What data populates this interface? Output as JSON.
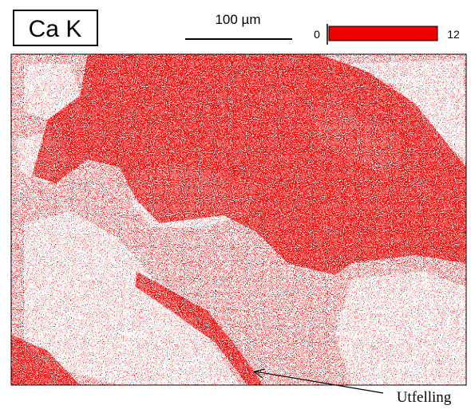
{
  "header": {
    "title": "Ca K",
    "scale_bar": "100 µm",
    "color_scale": {
      "min": "0",
      "max": "12"
    }
  },
  "annotation": "Utfelling"
}
